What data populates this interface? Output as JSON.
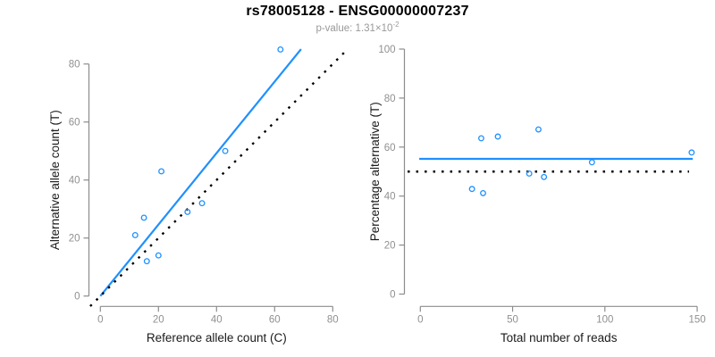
{
  "header": {
    "title": "rs78005128 - ENSG00000007237",
    "subtitle_prefix": "p-value: 1.31×10",
    "subtitle_exponent": "-2"
  },
  "colors": {
    "accent_blue": "#1e90ff",
    "axis_gray": "#8c8c8c",
    "tick_label_gray": "#909090",
    "label_black": "#1a1a1a",
    "identity_black": "#000000"
  },
  "chart_data": [
    {
      "type": "scatter",
      "name": "allele-counts-scatter",
      "xlabel": "Reference allele count (C)",
      "ylabel": "Alternative allele count (T)",
      "xticks": [
        0,
        20,
        40,
        60,
        80
      ],
      "yticks": [
        0,
        20,
        40,
        60,
        80
      ],
      "xlim": [
        -4,
        85.5
      ],
      "ylim": [
        -3.6,
        85.1
      ],
      "points": [
        {
          "x": 12,
          "y": 21
        },
        {
          "x": 15,
          "y": 27
        },
        {
          "x": 16,
          "y": 12
        },
        {
          "x": 20,
          "y": 14
        },
        {
          "x": 21,
          "y": 43
        },
        {
          "x": 30,
          "y": 29
        },
        {
          "x": 35,
          "y": 32
        },
        {
          "x": 43,
          "y": 50
        },
        {
          "x": 62,
          "y": 85
        }
      ],
      "lines": [
        {
          "name": "fit-line",
          "kind": "slope",
          "intercept": 0,
          "slope": 1.232,
          "x_from": 0,
          "x_to": 69.1,
          "style": "solid",
          "color": "#1e90ff"
        },
        {
          "name": "identity-line",
          "kind": "slope",
          "intercept": 0,
          "slope": 1,
          "x_from": -3.5,
          "x_to": 85.1,
          "style": "dotted",
          "color": "#000000"
        }
      ]
    },
    {
      "type": "scatter",
      "name": "percentage-scatter",
      "xlabel": "Total number of reads",
      "ylabel": "Percentage alternative (T)",
      "xticks": [
        0,
        50,
        100,
        150
      ],
      "yticks": [
        0,
        20,
        40,
        60,
        80,
        100
      ],
      "xlim": [
        -7,
        153
      ],
      "ylim": [
        -4,
        104
      ],
      "points": [
        {
          "x": 33,
          "y": 63.6
        },
        {
          "x": 42,
          "y": 64.3
        },
        {
          "x": 28,
          "y": 42.9
        },
        {
          "x": 34,
          "y": 41.2
        },
        {
          "x": 64,
          "y": 67.2
        },
        {
          "x": 59,
          "y": 49.2
        },
        {
          "x": 67,
          "y": 47.8
        },
        {
          "x": 93,
          "y": 53.8
        },
        {
          "x": 147,
          "y": 57.8
        }
      ],
      "lines": [
        {
          "name": "mean-line",
          "kind": "horizontal",
          "y": 55.2,
          "x_from": -0.6,
          "x_to": 147.6,
          "style": "solid",
          "color": "#1e90ff"
        },
        {
          "name": "null-line",
          "kind": "horizontal",
          "y": 50,
          "x_from": -6.9,
          "x_to": 145.6,
          "style": "dotted",
          "color": "#000000"
        }
      ]
    }
  ]
}
